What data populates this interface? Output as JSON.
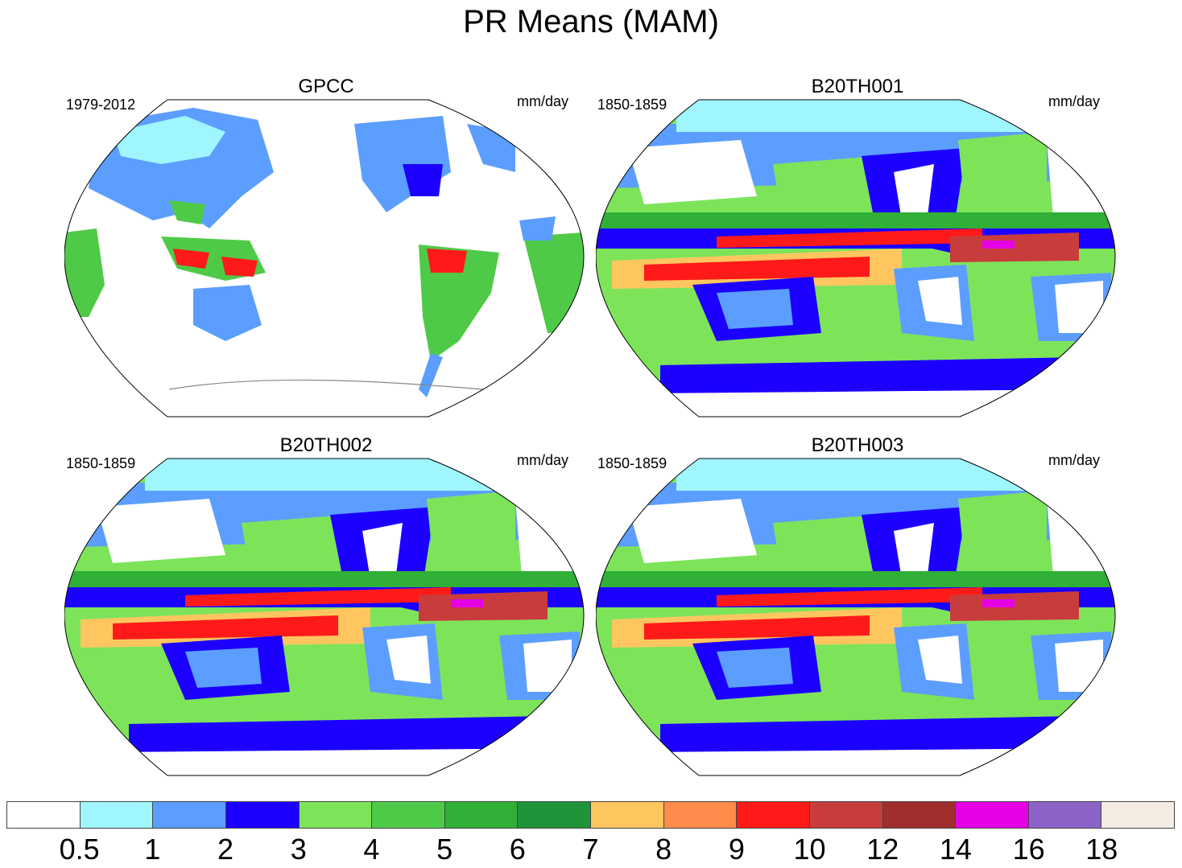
{
  "title": "PR Means (MAM)",
  "units_label": "mm/day",
  "panels": [
    {
      "title": "GPCC",
      "period": "1979-2012",
      "units": "mm/day",
      "style": "observed"
    },
    {
      "title": "B20TH001",
      "period": "1850-1859",
      "units": "mm/day",
      "style": "model"
    },
    {
      "title": "B20TH002",
      "period": "1850-1859",
      "units": "mm/day",
      "style": "model"
    },
    {
      "title": "B20TH003",
      "period": "1850-1859",
      "units": "mm/day",
      "style": "model"
    }
  ],
  "colorbar": {
    "levels": [
      "0.5",
      "1",
      "2",
      "3",
      "4",
      "5",
      "6",
      "7",
      "8",
      "9",
      "10",
      "12",
      "14",
      "16",
      "18"
    ],
    "colors": [
      "#ffffff",
      "#a0f6ff",
      "#5c9eff",
      "#1c00ff",
      "#7de45a",
      "#4fca48",
      "#30b036",
      "#1f9438",
      "#ffc660",
      "#ff8c4a",
      "#ff1a1a",
      "#c83c3c",
      "#a02e2e",
      "#e600e6",
      "#8c64c8",
      "#f5ece4"
    ]
  }
}
